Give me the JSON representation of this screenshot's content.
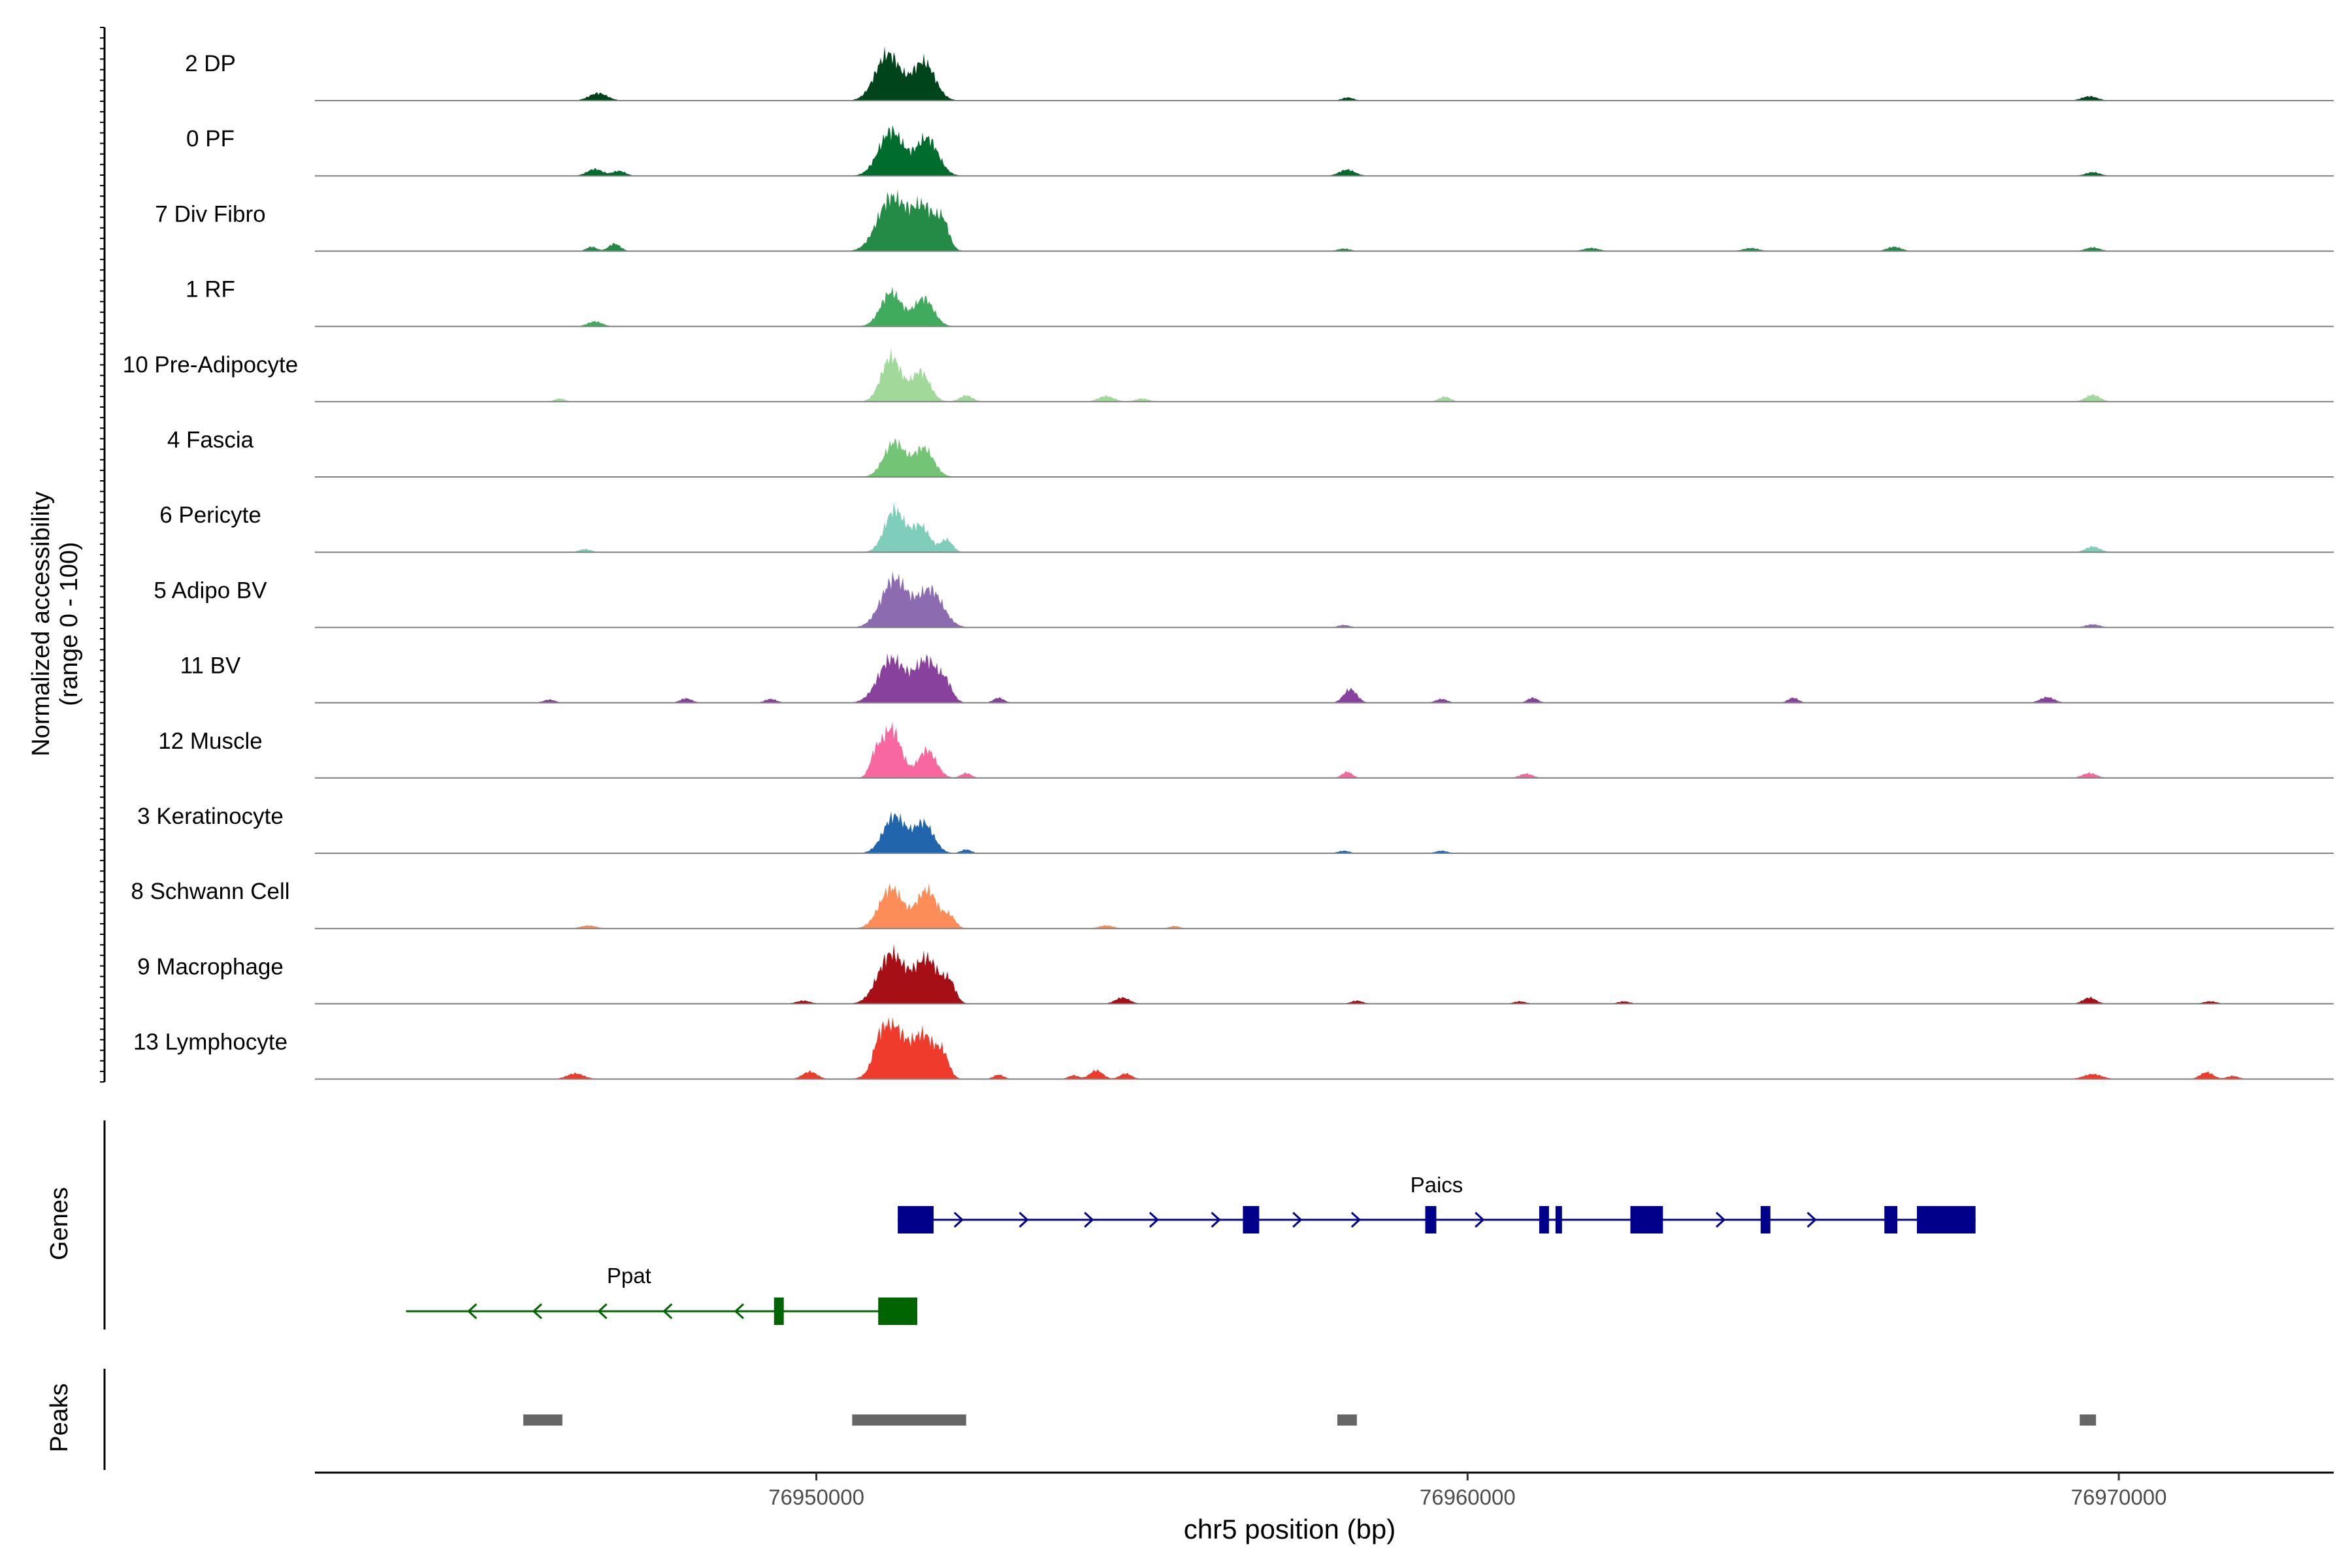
{
  "chart_data": {
    "type": "area",
    "title": "",
    "chromosome": "chr5",
    "xlabel": "chr5 position (bp)",
    "ylabel_line1": "Normalized accessibility",
    "ylabel_line2": "(range 0 - 100)",
    "xlim": [
      76942300,
      76973300
    ],
    "x_ticks": [
      76950000,
      76960000,
      76970000
    ],
    "x_tick_labels": [
      "76950000",
      "76960000",
      "76970000"
    ],
    "tracks": [
      {
        "name": "2 DP",
        "color": "#00441b",
        "peaks": [
          [
            76951100,
            0.75,
            190
          ],
          [
            76951650,
            0.62,
            170
          ],
          [
            76946650,
            0.12,
            140
          ],
          [
            76958160,
            0.05,
            90
          ],
          [
            76969550,
            0.07,
            120
          ]
        ]
      },
      {
        "name": "0 PF",
        "color": "#006d2c",
        "peaks": [
          [
            76951150,
            0.72,
            190
          ],
          [
            76951700,
            0.6,
            170
          ],
          [
            76946600,
            0.11,
            120
          ],
          [
            76946970,
            0.08,
            100
          ],
          [
            76958150,
            0.1,
            120
          ],
          [
            76969600,
            0.06,
            110
          ]
        ]
      },
      {
        "name": "7 Div Fibro",
        "color": "#238b45",
        "peaks": [
          [
            76951150,
            0.85,
            210
          ],
          [
            76951650,
            0.7,
            190
          ],
          [
            76951950,
            0.35,
            90
          ],
          [
            76946550,
            0.07,
            80
          ],
          [
            76946900,
            0.12,
            90
          ],
          [
            76958100,
            0.04,
            100
          ],
          [
            76961900,
            0.05,
            120
          ],
          [
            76964350,
            0.05,
            120
          ],
          [
            76966550,
            0.07,
            110
          ],
          [
            76969600,
            0.06,
            110
          ]
        ]
      },
      {
        "name": "1 RF",
        "color": "#41ab5d",
        "peaks": [
          [
            76951150,
            0.55,
            160
          ],
          [
            76951650,
            0.45,
            150
          ],
          [
            76946600,
            0.08,
            110
          ]
        ]
      },
      {
        "name": "10 Pre-Adipocyte",
        "color": "#a1d99b",
        "peaks": [
          [
            76951150,
            0.72,
            150
          ],
          [
            76951600,
            0.48,
            140
          ],
          [
            76952300,
            0.1,
            100
          ],
          [
            76954450,
            0.09,
            120
          ],
          [
            76955000,
            0.05,
            100
          ],
          [
            76959650,
            0.08,
            90
          ],
          [
            76969600,
            0.11,
            110
          ],
          [
            76946060,
            0.05,
            80
          ]
        ]
      },
      {
        "name": "4 Fascia",
        "color": "#74c476",
        "peaks": [
          [
            76951200,
            0.56,
            160
          ],
          [
            76951650,
            0.46,
            150
          ]
        ]
      },
      {
        "name": "6 Pericyte",
        "color": "#7fcdbb",
        "peaks": [
          [
            76951200,
            0.68,
            150
          ],
          [
            76951600,
            0.42,
            140
          ],
          [
            76952000,
            0.2,
            90
          ],
          [
            76946450,
            0.05,
            90
          ],
          [
            76969600,
            0.09,
            110
          ]
        ]
      },
      {
        "name": "5 Adipo BV",
        "color": "#8c6bb1",
        "peaks": [
          [
            76951200,
            0.78,
            200
          ],
          [
            76951750,
            0.6,
            190
          ],
          [
            76958100,
            0.04,
            90
          ],
          [
            76969600,
            0.05,
            110
          ]
        ]
      },
      {
        "name": "11 BV",
        "color": "#88419d",
        "peaks": [
          [
            76951150,
            0.7,
            200
          ],
          [
            76951700,
            0.68,
            190
          ],
          [
            76952000,
            0.2,
            90
          ],
          [
            76952800,
            0.08,
            80
          ],
          [
            76958200,
            0.22,
            100
          ],
          [
            76959600,
            0.06,
            90
          ],
          [
            76961000,
            0.08,
            80
          ],
          [
            76965000,
            0.08,
            80
          ],
          [
            76968900,
            0.09,
            110
          ],
          [
            76948000,
            0.07,
            90
          ],
          [
            76949300,
            0.06,
            90
          ],
          [
            76945900,
            0.05,
            90
          ]
        ]
      },
      {
        "name": "12 Muscle",
        "color": "#f768a1",
        "peaks": [
          [
            76951150,
            0.8,
            150
          ],
          [
            76951700,
            0.45,
            140
          ],
          [
            76950900,
            0.28,
            80
          ],
          [
            76952300,
            0.08,
            80
          ],
          [
            76958150,
            0.1,
            80
          ],
          [
            76960900,
            0.07,
            100
          ],
          [
            76969550,
            0.08,
            110
          ]
        ]
      },
      {
        "name": "3 Keratinocyte",
        "color": "#2166ac",
        "peaks": [
          [
            76951200,
            0.6,
            170
          ],
          [
            76951650,
            0.48,
            150
          ],
          [
            76952300,
            0.06,
            80
          ],
          [
            76958100,
            0.04,
            90
          ],
          [
            76959600,
            0.04,
            90
          ]
        ]
      },
      {
        "name": "8 Schwann Cell",
        "color": "#fc8d59",
        "peaks": [
          [
            76951150,
            0.65,
            180
          ],
          [
            76951700,
            0.62,
            160
          ],
          [
            76952050,
            0.18,
            90
          ],
          [
            76946500,
            0.05,
            120
          ],
          [
            76954450,
            0.05,
            110
          ],
          [
            76955500,
            0.04,
            80
          ]
        ]
      },
      {
        "name": "9 Macrophage",
        "color": "#a50f15",
        "peaks": [
          [
            76951150,
            0.8,
            200
          ],
          [
            76951700,
            0.72,
            190
          ],
          [
            76952050,
            0.28,
            90
          ],
          [
            76954700,
            0.1,
            110
          ],
          [
            76949800,
            0.05,
            110
          ],
          [
            76958300,
            0.05,
            90
          ],
          [
            76969550,
            0.1,
            100
          ],
          [
            76971400,
            0.04,
            100
          ],
          [
            76960800,
            0.04,
            90
          ],
          [
            76962400,
            0.04,
            90
          ]
        ]
      },
      {
        "name": "13 Lymphocyte",
        "color": "#ef3b2c",
        "peaks": [
          [
            76951150,
            0.88,
            190
          ],
          [
            76951650,
            0.7,
            180
          ],
          [
            76951950,
            0.3,
            90
          ],
          [
            76950950,
            0.2,
            80
          ],
          [
            76949900,
            0.12,
            110
          ],
          [
            76954300,
            0.14,
            100
          ],
          [
            76954750,
            0.09,
            90
          ],
          [
            76946300,
            0.09,
            130
          ],
          [
            76969600,
            0.08,
            140
          ],
          [
            76971350,
            0.11,
            100
          ],
          [
            76971750,
            0.05,
            90
          ],
          [
            76952800,
            0.07,
            80
          ],
          [
            76953950,
            0.06,
            80
          ]
        ]
      }
    ],
    "genes_panel_label": "Genes",
    "genes": [
      {
        "name": "Paics",
        "strand": "+",
        "color": "#00008b",
        "start": 76951250,
        "end": 76967800,
        "exons": [
          [
            76951250,
            76951800
          ],
          [
            76956550,
            76956800
          ],
          [
            76959350,
            76959520
          ],
          [
            76961100,
            76961250
          ],
          [
            76961350,
            76961450
          ],
          [
            76962500,
            76963000
          ],
          [
            76964500,
            76964650
          ],
          [
            76966400,
            76966600
          ],
          [
            76966900,
            76967800
          ]
        ],
        "arrows": [
          76952200,
          76953200,
          76954200,
          76955200,
          76956150,
          76957400,
          76958300,
          76960200,
          76963900,
          76965300
        ]
      },
      {
        "name": "Ppat",
        "strand": "-",
        "color": "#006400",
        "start": 76943700,
        "end": 76951550,
        "exons": [
          [
            76949350,
            76949500
          ],
          [
            76950950,
            76951550
          ]
        ],
        "arrows": [
          76944700,
          76945700,
          76946700,
          76947700,
          76948800
        ]
      }
    ],
    "peaks_panel_label": "Peaks",
    "peak_regions": [
      [
        76945500,
        76946100
      ],
      [
        76950550,
        76952300
      ],
      [
        76958000,
        76958300
      ],
      [
        76969400,
        76969650
      ]
    ],
    "peak_color": "#666666"
  }
}
